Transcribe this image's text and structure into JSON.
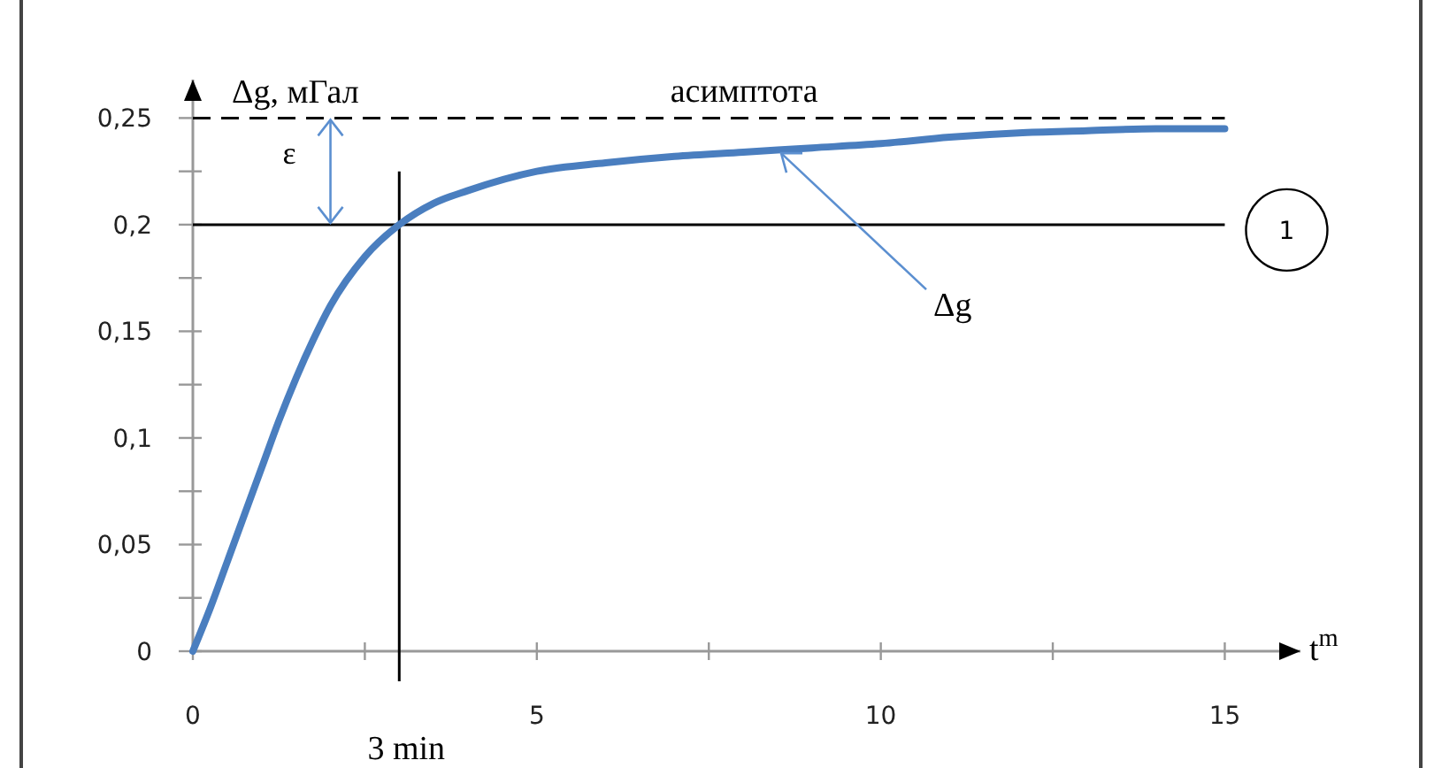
{
  "chart_data": {
    "type": "line",
    "xlabel": "t$^{m}$",
    "ylabel": "Δg, мГал",
    "x": [
      0,
      0.25,
      0.5,
      0.75,
      1,
      1.25,
      1.5,
      1.75,
      2,
      2.5,
      3,
      3.5,
      4,
      5,
      6,
      7,
      8,
      9,
      10,
      11,
      12,
      13,
      14,
      15
    ],
    "series": [
      {
        "color": "#4a7ebf",
        "values": [
          0,
          0.02,
          0.042,
          0.064,
          0.086,
          0.108,
          0.128,
          0.146,
          0.162,
          0.185,
          0.2,
          0.21,
          0.216,
          0.225,
          0.229,
          0.232,
          0.234,
          0.236,
          0.238,
          0.241,
          0.243,
          0.244,
          0.245,
          0.245
        ]
      }
    ],
    "xlim": [
      0,
      16.1
    ],
    "ylim": [
      0,
      0.268
    ],
    "xticks": [
      {
        "value": 0,
        "label": "0"
      },
      {
        "value": 2.5,
        "label": null
      },
      {
        "value": 5,
        "label": "5"
      },
      {
        "value": 7.5,
        "label": null
      },
      {
        "value": 10,
        "label": "10"
      },
      {
        "value": 12.5,
        "label": null
      },
      {
        "value": 15,
        "label": "15"
      }
    ],
    "yticks": [
      {
        "value": 0,
        "label": "0"
      },
      {
        "value": 0.025,
        "label": null
      },
      {
        "value": 0.05,
        "label": "0,05"
      },
      {
        "value": 0.075,
        "label": null
      },
      {
        "value": 0.1,
        "label": "0,1"
      },
      {
        "value": 0.125,
        "label": null
      },
      {
        "value": 0.15,
        "label": "0,15"
      },
      {
        "value": 0.175,
        "label": null
      },
      {
        "value": 0.2,
        "label": "0,2"
      },
      {
        "value": 0.225,
        "label": null
      },
      {
        "value": 0.25,
        "label": "0,25"
      }
    ],
    "ref_lines": [
      {
        "axis": "y",
        "value": 0.25,
        "label": "асимптота",
        "line_style": "dashed",
        "color": "#000000"
      },
      {
        "axis": "y",
        "value": 0.2,
        "line_style": "solid",
        "color": "#000000"
      },
      {
        "axis": "x",
        "value": 3,
        "label": "3 min",
        "line_style": "solid",
        "color": "#000000"
      }
    ],
    "annotations": [
      "1",
      {
        "text": "ε",
        "x": 2,
        "y": 0.25
      },
      {
        "text": "Δg",
        "x": 8.5,
        "y": 0.236
      }
    ],
    "grid": false,
    "marker": "none",
    "line_style": "solid"
  }
}
